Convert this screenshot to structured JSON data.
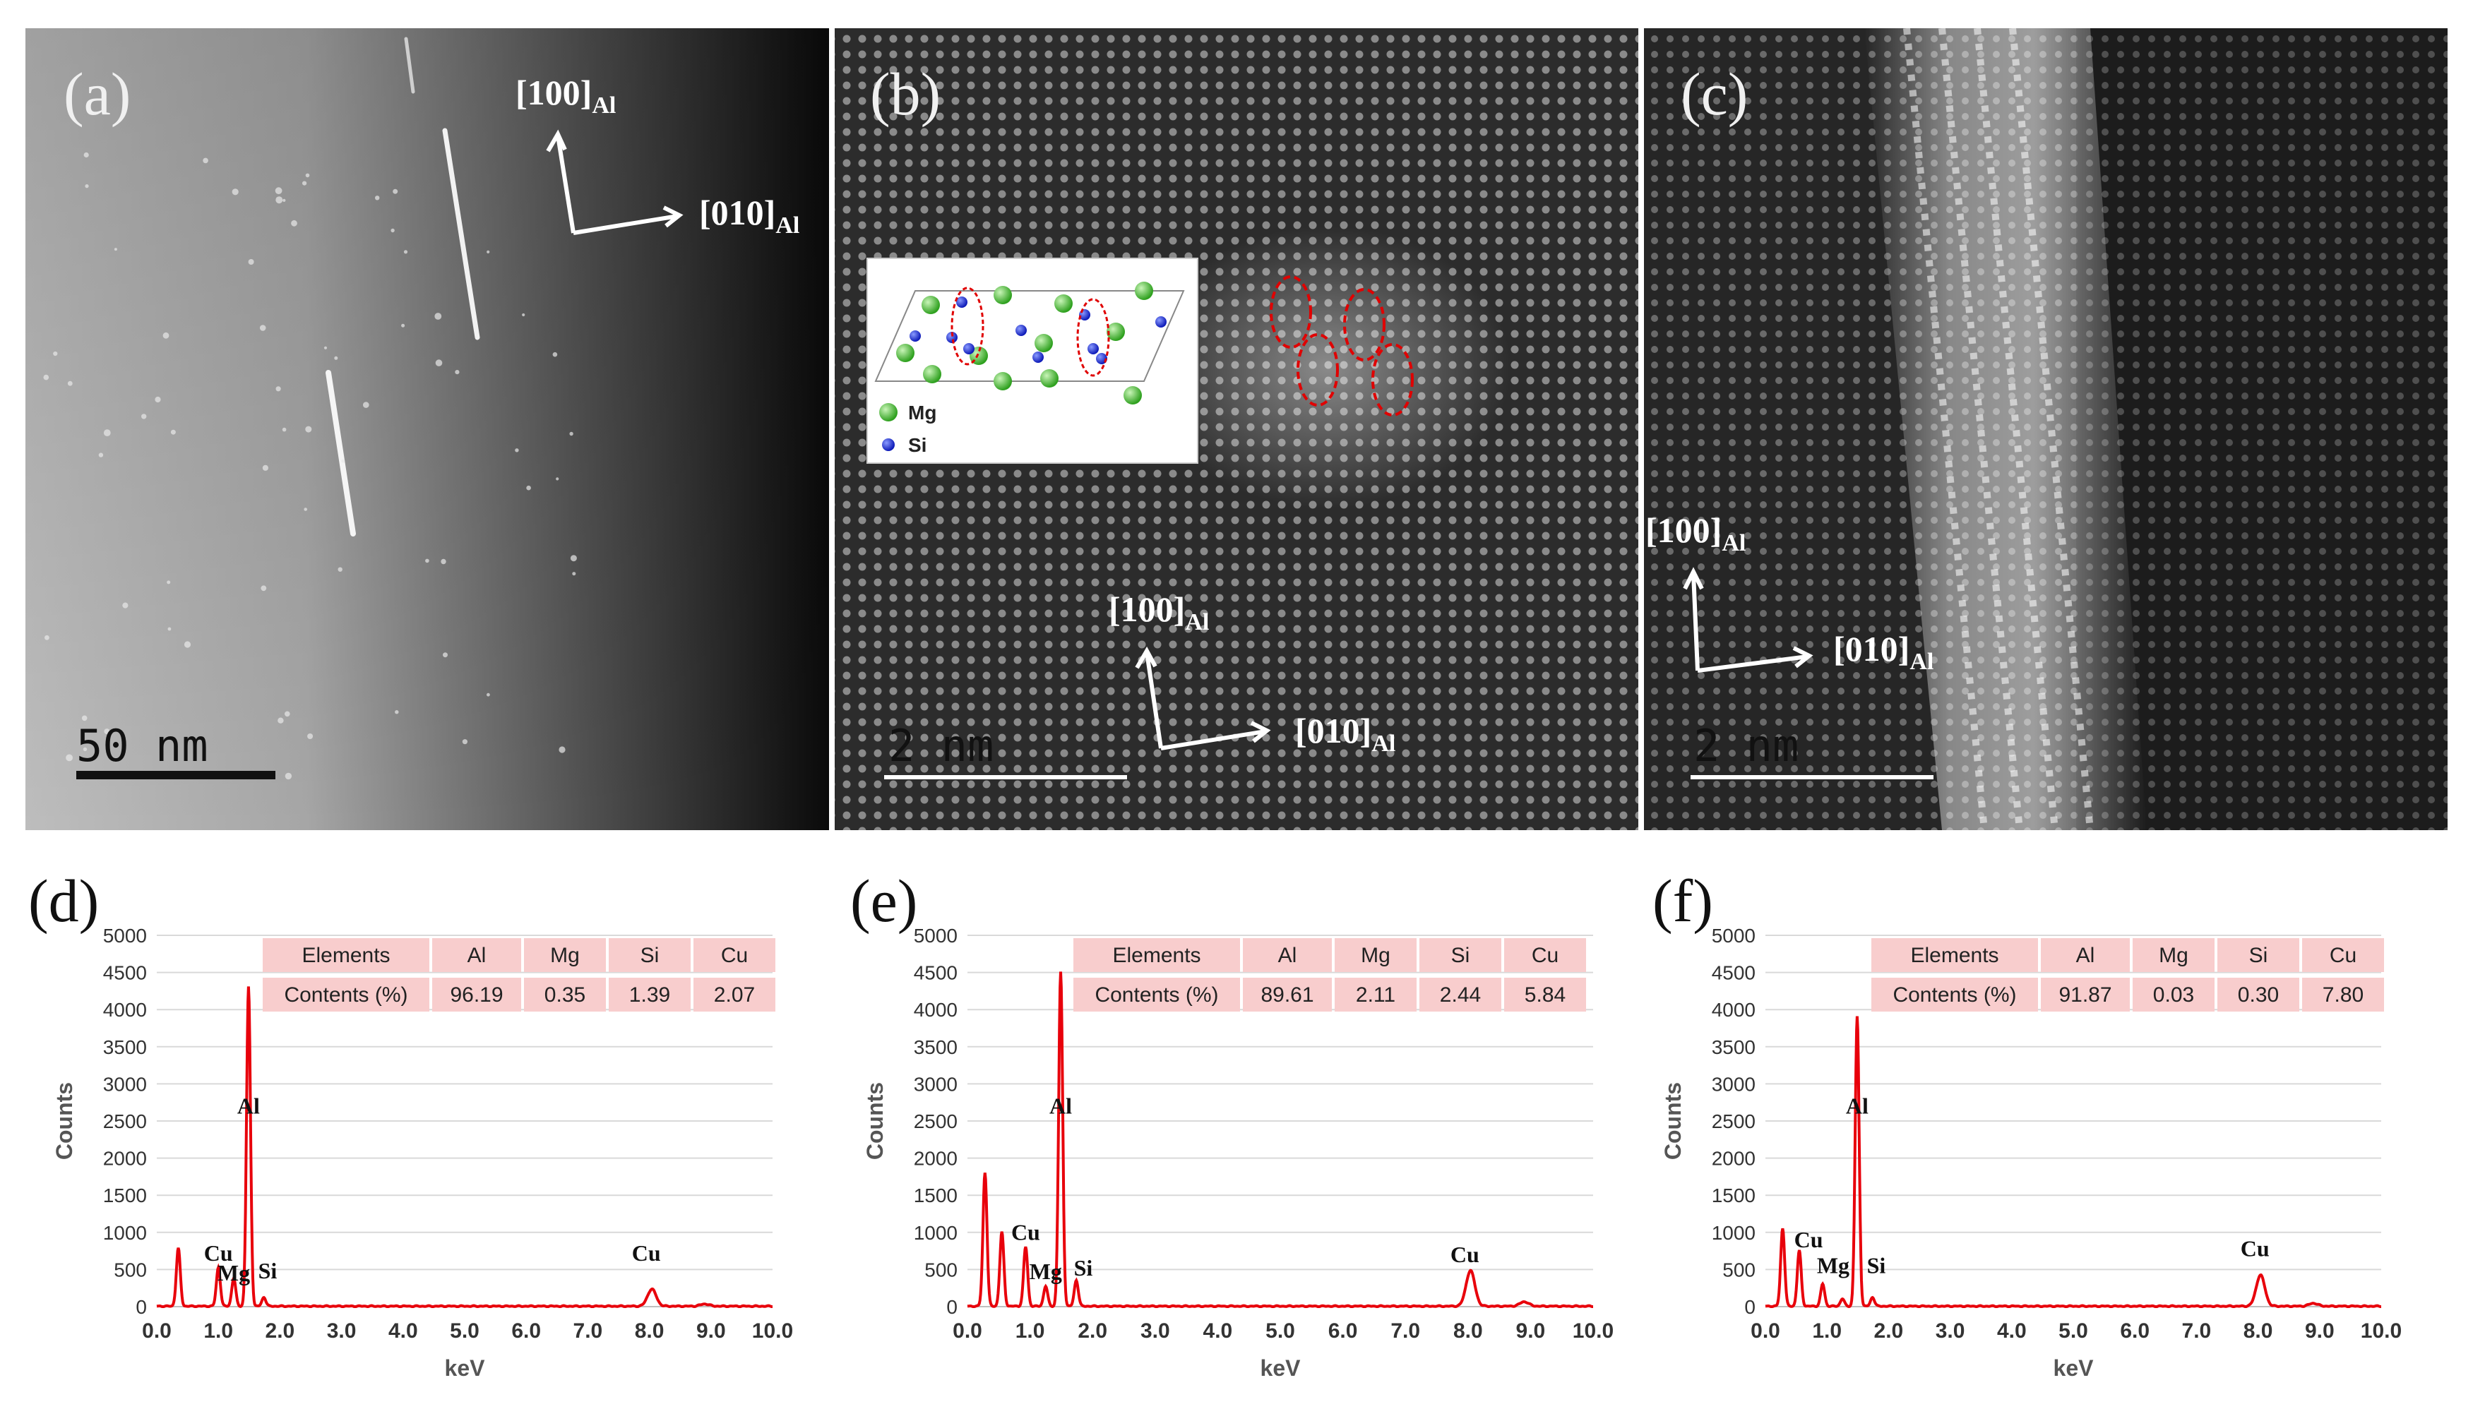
{
  "figure": {
    "panels": {
      "a": {
        "label": "(a)",
        "scale_bar": "50 nm",
        "axis_up": "[100]",
        "axis_right": "[010]",
        "axis_sub": "Al"
      },
      "b": {
        "label": "(b)",
        "scale_bar": "2 nm",
        "axis_up": "[100]",
        "axis_right": "[010]",
        "axis_sub": "Al",
        "inset_legend": [
          "Mg",
          "Si"
        ]
      },
      "c": {
        "label": "(c)",
        "scale_bar": "2 nm",
        "axis_up": "[100]",
        "axis_right": "[010]",
        "axis_sub": "Al"
      }
    }
  },
  "colors": {
    "spectrum": "#e8000b",
    "table_bg": "#f8cdcd",
    "mg_atom": "#3dbb2c",
    "si_atom": "#1a2bd6",
    "ellipse": "#e00000"
  },
  "chart_data": [
    {
      "type": "line",
      "panel_label": "(d)",
      "xlabel": "keV",
      "ylabel": "Counts",
      "xlim": [
        0,
        10
      ],
      "ylim": [
        0,
        5000
      ],
      "x_ticks": [
        "0.0",
        "1.0",
        "2.0",
        "3.0",
        "4.0",
        "5.0",
        "6.0",
        "7.0",
        "8.0",
        "9.0",
        "10.0"
      ],
      "y_ticks": [
        "0",
        "500",
        "1000",
        "1500",
        "2000",
        "2500",
        "3000",
        "3500",
        "4000",
        "4500",
        "5000"
      ],
      "peaks": [
        {
          "x": 0.35,
          "y": 780
        },
        {
          "x": 1.0,
          "y": 520
        },
        {
          "x": 1.25,
          "y": 380
        },
        {
          "x": 1.49,
          "y": 4300
        },
        {
          "x": 1.74,
          "y": 120
        },
        {
          "x": 8.04,
          "y": 230
        },
        {
          "x": 8.9,
          "y": 30
        }
      ],
      "annotations": [
        {
          "text": "Al",
          "x": 1.49,
          "y": 2600
        },
        {
          "text": "Cu",
          "x": 1.0,
          "y": 620
        },
        {
          "text": "Mg",
          "x": 1.25,
          "y": 350
        },
        {
          "text": "Si",
          "x": 1.8,
          "y": 380
        },
        {
          "text": "Cu",
          "x": 7.95,
          "y": 620
        }
      ],
      "table": {
        "header": [
          "Elements",
          "Al",
          "Mg",
          "Si",
          "Cu"
        ],
        "row": [
          "Contents (%)",
          "96.19",
          "0.35",
          "1.39",
          "2.07"
        ]
      }
    },
    {
      "type": "line",
      "panel_label": "(e)",
      "xlabel": "keV",
      "ylabel": "Counts",
      "xlim": [
        0,
        10
      ],
      "ylim": [
        0,
        5000
      ],
      "x_ticks": [
        "0.0",
        "1.0",
        "2.0",
        "3.0",
        "4.0",
        "5.0",
        "6.0",
        "7.0",
        "8.0",
        "9.0",
        "10.0"
      ],
      "y_ticks": [
        "0",
        "500",
        "1000",
        "1500",
        "2000",
        "2500",
        "3000",
        "3500",
        "4000",
        "4500",
        "5000"
      ],
      "peaks": [
        {
          "x": 0.28,
          "y": 1800
        },
        {
          "x": 0.55,
          "y": 1000
        },
        {
          "x": 0.93,
          "y": 800
        },
        {
          "x": 1.25,
          "y": 270
        },
        {
          "x": 1.49,
          "y": 4500
        },
        {
          "x": 1.74,
          "y": 350
        },
        {
          "x": 8.04,
          "y": 480
        },
        {
          "x": 8.9,
          "y": 60
        }
      ],
      "annotations": [
        {
          "text": "Al",
          "x": 1.49,
          "y": 2600
        },
        {
          "text": "Cu",
          "x": 0.93,
          "y": 900
        },
        {
          "text": "Mg",
          "x": 1.25,
          "y": 370
        },
        {
          "text": "Si",
          "x": 1.85,
          "y": 420
        },
        {
          "text": "Cu",
          "x": 7.95,
          "y": 600
        }
      ],
      "table": {
        "header": [
          "Elements",
          "Al",
          "Mg",
          "Si",
          "Cu"
        ],
        "row": [
          "Contents (%)",
          "89.61",
          "2.11",
          "2.44",
          "5.84"
        ]
      }
    },
    {
      "type": "line",
      "panel_label": "(f)",
      "xlabel": "keV",
      "ylabel": "Counts",
      "xlim": [
        0,
        10
      ],
      "ylim": [
        0,
        5000
      ],
      "x_ticks": [
        "0.0",
        "1.0",
        "2.0",
        "3.0",
        "4.0",
        "5.0",
        "6.0",
        "7.0",
        "8.0",
        "9.0",
        "10.0"
      ],
      "y_ticks": [
        "0",
        "500",
        "1000",
        "1500",
        "2000",
        "2500",
        "3000",
        "3500",
        "4000",
        "4500",
        "5000"
      ],
      "peaks": [
        {
          "x": 0.28,
          "y": 1050
        },
        {
          "x": 0.55,
          "y": 750
        },
        {
          "x": 0.93,
          "y": 300
        },
        {
          "x": 1.25,
          "y": 100
        },
        {
          "x": 1.49,
          "y": 3900
        },
        {
          "x": 1.74,
          "y": 120
        },
        {
          "x": 8.04,
          "y": 420
        },
        {
          "x": 8.9,
          "y": 40
        }
      ],
      "annotations": [
        {
          "text": "Al",
          "x": 1.49,
          "y": 2600
        },
        {
          "text": "Cu",
          "x": 0.7,
          "y": 800
        },
        {
          "text": "Mg",
          "x": 1.1,
          "y": 450
        },
        {
          "text": "Si",
          "x": 1.8,
          "y": 450
        },
        {
          "text": "Cu",
          "x": 7.95,
          "y": 680
        }
      ],
      "table": {
        "header": [
          "Elements",
          "Al",
          "Mg",
          "Si",
          "Cu"
        ],
        "row": [
          "Contents (%)",
          "91.87",
          "0.03",
          "0.30",
          "7.80"
        ]
      }
    }
  ]
}
